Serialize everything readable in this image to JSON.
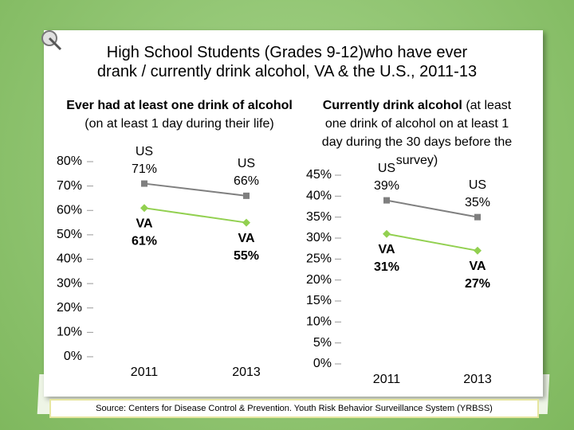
{
  "slide": {
    "title_lines": [
      "High School Students (Grades 9-12)who have ever",
      "drank / currently drink alcohol, VA & the U.S., 2011-13"
    ]
  },
  "chart_data": [
    {
      "type": "line",
      "title_bold": "Ever had at least one drink of alcohol",
      "title_rest": "(on at least 1 day during their life)",
      "categories": [
        "2011",
        "2013"
      ],
      "series": [
        {
          "name": "US",
          "color": "#7f7f7f",
          "values": [
            71,
            66
          ],
          "value_labels": [
            "71%",
            "66%"
          ]
        },
        {
          "name": "VA",
          "color": "#92d050",
          "values": [
            61,
            55
          ],
          "value_labels": [
            "61%",
            "55%"
          ]
        }
      ],
      "ylim": [
        0,
        80
      ],
      "yticks": [
        {
          "value": 0,
          "label": "0%"
        },
        {
          "value": 10,
          "label": "10%"
        },
        {
          "value": 20,
          "label": "20%"
        },
        {
          "value": 30,
          "label": "30%"
        },
        {
          "value": 40,
          "label": "40%"
        },
        {
          "value": 50,
          "label": "50%"
        },
        {
          "value": 60,
          "label": "60%"
        },
        {
          "value": 70,
          "label": "70%"
        },
        {
          "value": 80,
          "label": "80%"
        }
      ]
    },
    {
      "type": "line",
      "title_bold": "Currently drink alcohol",
      "title_rest": "(at least one drink of alcohol on at least 1 day during the 30 days before the survey)",
      "categories": [
        "2011",
        "2013"
      ],
      "series": [
        {
          "name": "US",
          "color": "#7f7f7f",
          "values": [
            39,
            35
          ],
          "value_labels": [
            "39%",
            "35%"
          ]
        },
        {
          "name": "VA",
          "color": "#92d050",
          "values": [
            31,
            27
          ],
          "value_labels": [
            "31%",
            "27%"
          ]
        }
      ],
      "ylim": [
        0,
        45
      ],
      "yticks": [
        {
          "value": 0,
          "label": "0%"
        },
        {
          "value": 5,
          "label": "5%"
        },
        {
          "value": 10,
          "label": "10%"
        },
        {
          "value": 15,
          "label": "15%"
        },
        {
          "value": 20,
          "label": "20%"
        },
        {
          "value": 25,
          "label": "25%"
        },
        {
          "value": 30,
          "label": "30%"
        },
        {
          "value": 35,
          "label": "35%"
        },
        {
          "value": 40,
          "label": "40%"
        },
        {
          "value": 45,
          "label": "45%"
        }
      ]
    }
  ],
  "source": "Source: Centers for Disease Control & Prevention. Youth Risk Behavior Surveillance System (YRBSS)"
}
